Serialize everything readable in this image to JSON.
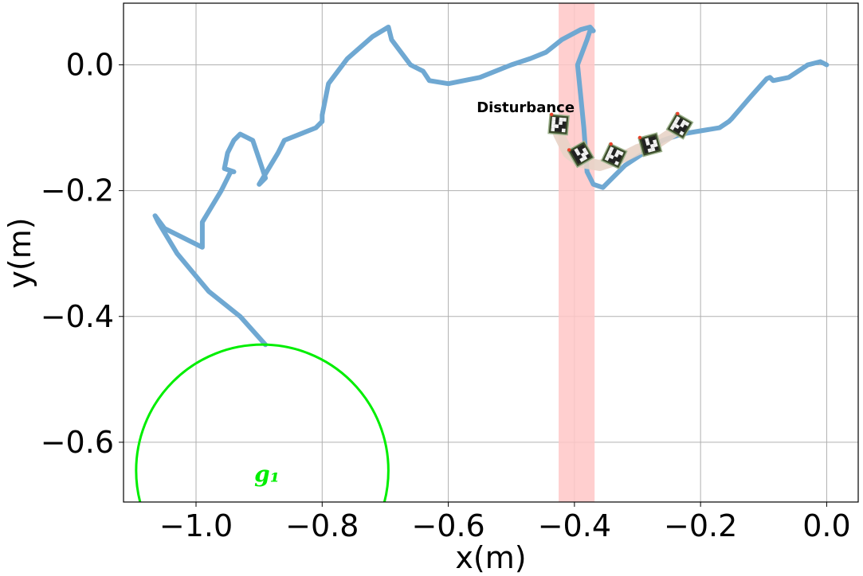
{
  "chart_data": {
    "type": "line",
    "title": "",
    "xlabel": "x(m)",
    "ylabel": "y(m)",
    "xlim": [
      -1.115,
      0.05
    ],
    "ylim": [
      -0.695,
      0.098
    ],
    "grid": true,
    "x_ticks": [
      -1.0,
      -0.8,
      -0.6,
      -0.4,
      -0.2,
      0.0
    ],
    "x_tick_labels": [
      "−1.0",
      "−0.8",
      "−0.6",
      "−0.4",
      "−0.2",
      "0.0"
    ],
    "y_ticks": [
      0.0,
      -0.2,
      -0.4,
      -0.6
    ],
    "y_tick_labels": [
      "0.0",
      "−0.2",
      "−0.4",
      "−0.6"
    ],
    "series": [
      {
        "name": "trajectory",
        "color": "#6fa8d2",
        "x": [
          0.0,
          -0.01,
          -0.03,
          -0.06,
          -0.085,
          -0.09,
          -0.095,
          -0.12,
          -0.15,
          -0.155,
          -0.17,
          -0.2,
          -0.23,
          -0.26,
          -0.29,
          -0.32,
          -0.355,
          -0.37,
          -0.38,
          -0.385,
          -0.39,
          -0.395,
          -0.38,
          -0.375,
          -0.37,
          -0.375,
          -0.39,
          -0.42,
          -0.445,
          -0.47,
          -0.5,
          -0.55,
          -0.6,
          -0.63,
          -0.64,
          -0.66,
          -0.69,
          -0.695,
          -0.72,
          -0.76,
          -0.79,
          -0.8,
          -0.8,
          -0.81,
          -0.86,
          -0.87,
          -0.9,
          -0.89,
          -0.9,
          -0.91,
          -0.93,
          -0.94,
          -0.95,
          -0.955,
          -0.955,
          -0.94,
          -0.945,
          -0.96,
          -0.99,
          -0.99,
          -1.01,
          -1.05,
          -1.065,
          -1.06,
          -1.03,
          -0.98,
          -0.93,
          -0.89
        ],
        "y": [
          0.0,
          0.005,
          0.0,
          -0.02,
          -0.025,
          -0.02,
          -0.022,
          -0.05,
          -0.085,
          -0.09,
          -0.1,
          -0.105,
          -0.11,
          -0.12,
          -0.14,
          -0.16,
          -0.195,
          -0.19,
          -0.17,
          -0.1,
          -0.05,
          0.0,
          0.04,
          0.055,
          0.054,
          0.06,
          0.056,
          0.04,
          0.02,
          0.01,
          0.0,
          -0.02,
          -0.03,
          -0.025,
          -0.01,
          0.0,
          0.04,
          0.06,
          0.045,
          0.01,
          -0.03,
          -0.08,
          -0.09,
          -0.1,
          -0.12,
          -0.14,
          -0.19,
          -0.18,
          -0.15,
          -0.12,
          -0.11,
          -0.12,
          -0.14,
          -0.165,
          -0.165,
          -0.17,
          -0.17,
          -0.2,
          -0.25,
          -0.29,
          -0.28,
          -0.26,
          -0.24,
          -0.25,
          -0.3,
          -0.36,
          -0.4,
          -0.445
        ]
      },
      {
        "name": "robot-trail",
        "color": "#e8d3c6",
        "x": [
          -0.425,
          -0.41,
          -0.39,
          -0.36,
          -0.33,
          -0.3,
          -0.27,
          -0.24
        ],
        "y": [
          -0.11,
          -0.14,
          -0.155,
          -0.16,
          -0.15,
          -0.135,
          -0.125,
          -0.105
        ]
      }
    ],
    "markers": [
      {
        "name": "aruco-marker",
        "x": -0.425,
        "y": -0.095,
        "angle": 5
      },
      {
        "name": "aruco-marker",
        "x": -0.39,
        "y": -0.142,
        "angle": -30
      },
      {
        "name": "aruco-marker",
        "x": -0.337,
        "y": -0.145,
        "angle": 25
      },
      {
        "name": "aruco-marker",
        "x": -0.28,
        "y": -0.127,
        "angle": -15
      },
      {
        "name": "aruco-marker",
        "x": -0.233,
        "y": -0.097,
        "angle": 30
      }
    ],
    "disturbance_band": {
      "x_min": -0.425,
      "x_max": -0.368,
      "label": "Disturbance",
      "color": "#ffc7c7"
    },
    "annotations": [
      {
        "text": "Disturbance",
        "x": -0.555,
        "y": -0.075
      }
    ],
    "goals": [
      {
        "name": "g1",
        "label": "g₁",
        "center_x": -0.895,
        "center_y": -0.645,
        "radius": 0.2,
        "color": "#00ee00"
      }
    ]
  }
}
